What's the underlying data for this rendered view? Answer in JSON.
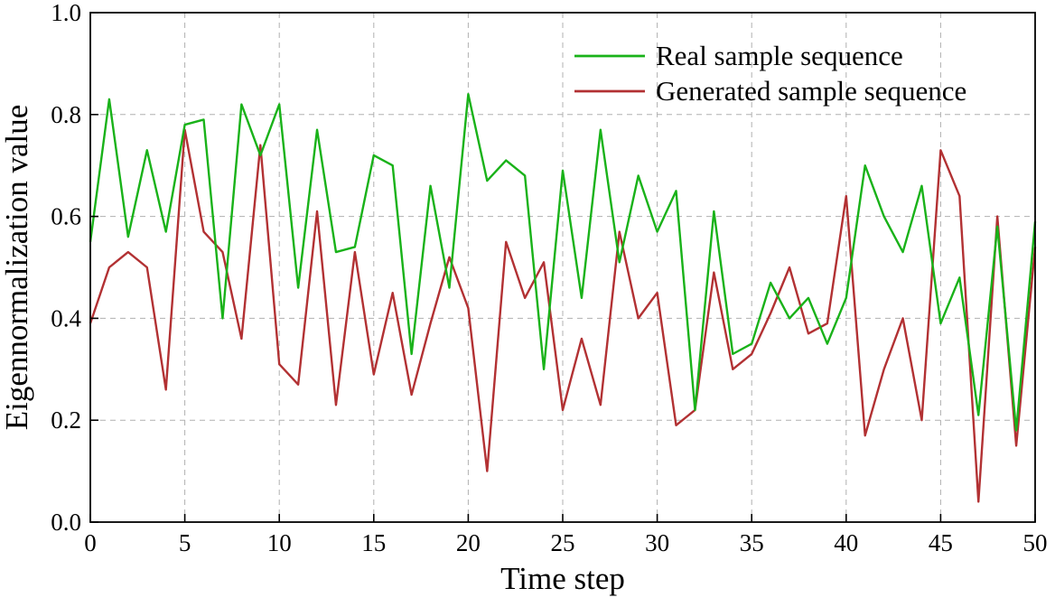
{
  "page": {
    "background": "#ffffff"
  },
  "chart_data": {
    "type": "line",
    "title": "",
    "xlabel": "Time step",
    "ylabel": "Eigennormalization value",
    "xlim": [
      0,
      50
    ],
    "ylim": [
      0.0,
      1.0
    ],
    "x_ticks": [
      0,
      5,
      10,
      15,
      20,
      25,
      30,
      35,
      40,
      45,
      50
    ],
    "y_ticks": [
      0.0,
      0.2,
      0.4,
      0.6,
      0.8,
      1.0
    ],
    "y_tick_labels": [
      "0.0",
      "0.2",
      "0.4",
      "0.6",
      "0.8",
      "1.0"
    ],
    "grid": {
      "show": true,
      "style": "dashed",
      "color": "#b0b0b0"
    },
    "legend": {
      "position": "top-right",
      "entries": [
        "Real sample sequence",
        "Generated sample sequence"
      ]
    },
    "x": [
      0,
      1,
      2,
      3,
      4,
      5,
      6,
      7,
      8,
      9,
      10,
      11,
      12,
      13,
      14,
      15,
      16,
      17,
      18,
      19,
      20,
      21,
      22,
      23,
      24,
      25,
      26,
      27,
      28,
      29,
      30,
      31,
      32,
      33,
      34,
      35,
      36,
      37,
      38,
      39,
      40,
      41,
      42,
      43,
      44,
      45,
      46,
      47,
      48,
      49,
      50
    ],
    "series": [
      {
        "name": "Real sample sequence",
        "color": "#19b219",
        "values": [
          0.55,
          0.83,
          0.56,
          0.73,
          0.57,
          0.78,
          0.79,
          0.4,
          0.82,
          0.72,
          0.82,
          0.46,
          0.77,
          0.53,
          0.54,
          0.72,
          0.7,
          0.33,
          0.66,
          0.46,
          0.84,
          0.67,
          0.71,
          0.68,
          0.3,
          0.69,
          0.44,
          0.77,
          0.51,
          0.68,
          0.57,
          0.65,
          0.22,
          0.61,
          0.33,
          0.35,
          0.47,
          0.4,
          0.44,
          0.35,
          0.44,
          0.7,
          0.6,
          0.53,
          0.66,
          0.39,
          0.48,
          0.21,
          0.58,
          0.18,
          0.59
        ]
      },
      {
        "name": "Generated sample sequence",
        "color": "#b23133",
        "values": [
          0.39,
          0.5,
          0.53,
          0.5,
          0.26,
          0.77,
          0.57,
          0.53,
          0.36,
          0.74,
          0.31,
          0.27,
          0.61,
          0.23,
          0.53,
          0.29,
          0.45,
          0.25,
          0.39,
          0.52,
          0.42,
          0.1,
          0.55,
          0.44,
          0.51,
          0.22,
          0.36,
          0.23,
          0.57,
          0.4,
          0.45,
          0.19,
          0.22,
          0.49,
          0.3,
          0.33,
          0.41,
          0.5,
          0.37,
          0.39,
          0.64,
          0.17,
          0.3,
          0.4,
          0.2,
          0.73,
          0.64,
          0.04,
          0.6,
          0.15,
          0.54
        ]
      }
    ]
  }
}
